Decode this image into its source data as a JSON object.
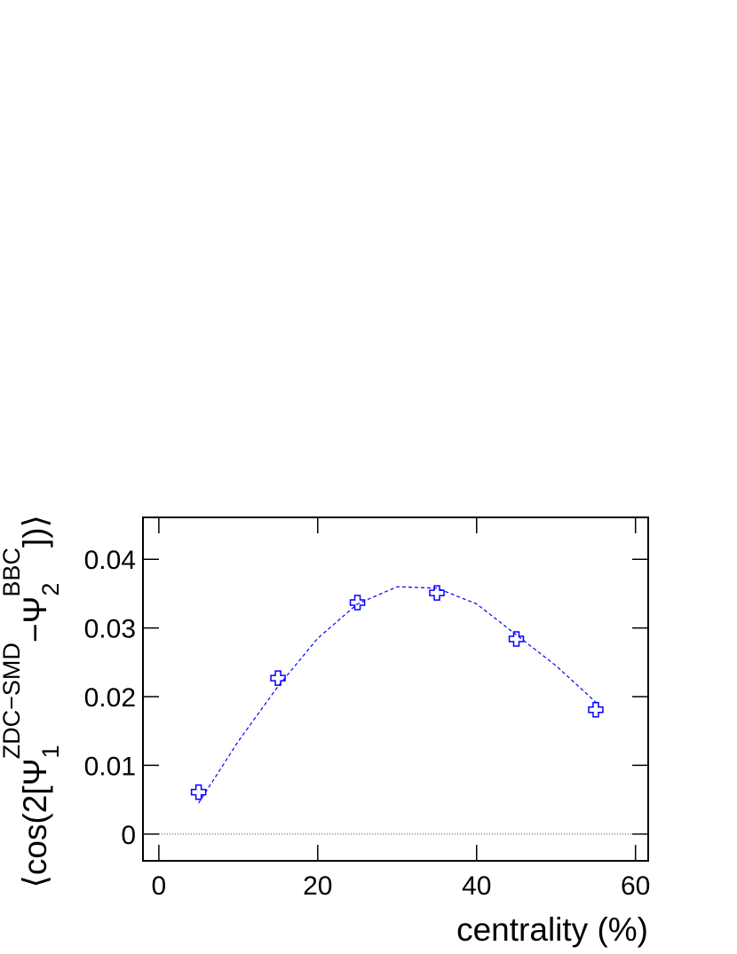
{
  "chart_data": {
    "type": "scatter",
    "x_label": "centrality (%)",
    "y_label_parts": [
      "⟨cos(2[Ψ",
      "1",
      "ZDC−SMD",
      "−Ψ",
      "2",
      "BBC",
      "])⟩"
    ],
    "xlim": [
      -2,
      61.6
    ],
    "ylim": [
      -0.0039,
      0.0461
    ],
    "xticks": [
      0,
      20,
      40,
      60
    ],
    "yticks": [
      0,
      0.01,
      0.02,
      0.03,
      0.04
    ],
    "reference_line": 0,
    "series": [
      {
        "color": "#0000ff",
        "x": [
          5,
          15,
          25,
          35,
          45,
          55
        ],
        "values": [
          0.0061,
          0.0227,
          0.0337,
          0.0351,
          0.0284,
          0.0181
        ]
      },
      {
        "color": "#0000ff",
        "x": [
          5,
          10,
          15,
          20,
          25,
          30,
          35,
          40,
          45,
          50,
          55
        ],
        "values": [
          0.0045,
          0.0135,
          0.0215,
          0.0285,
          0.0335,
          0.036,
          0.0358,
          0.0335,
          0.029,
          0.0245,
          0.0192
        ]
      }
    ]
  }
}
